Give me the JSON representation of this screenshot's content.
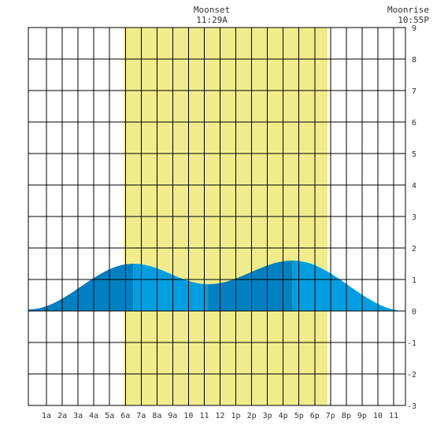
{
  "chart_data": {
    "type": "area",
    "x_unit": "hour of day",
    "x_range": [
      -0.15,
      23.75
    ],
    "y_range": [
      -3,
      9
    ],
    "y_ticks": [
      -3,
      -2,
      -1,
      0,
      1,
      2,
      3,
      4,
      5,
      6,
      7,
      8,
      9
    ],
    "x_tick_labels": [
      {
        "hour": 1,
        "label": "1a"
      },
      {
        "hour": 2,
        "label": "2a"
      },
      {
        "hour": 3,
        "label": "3a"
      },
      {
        "hour": 4,
        "label": "4a"
      },
      {
        "hour": 5,
        "label": "5a"
      },
      {
        "hour": 6,
        "label": "6a"
      },
      {
        "hour": 7,
        "label": "7a"
      },
      {
        "hour": 8,
        "label": "8a"
      },
      {
        "hour": 9,
        "label": "9a"
      },
      {
        "hour": 10,
        "label": "10"
      },
      {
        "hour": 11,
        "label": "11"
      },
      {
        "hour": 12,
        "label": "12"
      },
      {
        "hour": 13,
        "label": "1p"
      },
      {
        "hour": 14,
        "label": "2p"
      },
      {
        "hour": 15,
        "label": "3p"
      },
      {
        "hour": 16,
        "label": "4p"
      },
      {
        "hour": 17,
        "label": "5p"
      },
      {
        "hour": 18,
        "label": "6p"
      },
      {
        "hour": 19,
        "label": "7p"
      },
      {
        "hour": 20,
        "label": "8p"
      },
      {
        "hour": 21,
        "label": "9p"
      },
      {
        "hour": 22,
        "label": "10"
      },
      {
        "hour": 23,
        "label": "11"
      }
    ],
    "grid": true,
    "daylight": {
      "start": 5.9,
      "end": 18.8,
      "color": "#f0ec8c"
    },
    "tide_points": [
      {
        "x": -0.15,
        "y": 0.05
      },
      {
        "x": 6.5,
        "y": 1.5
      },
      {
        "x": 11.25,
        "y": 0.85
      },
      {
        "x": 16.6,
        "y": 1.6
      },
      {
        "x": 23.75,
        "y": 0.0
      }
    ],
    "tide_colors": {
      "light": "#009ee0",
      "dark": "#0080c0"
    },
    "moon_events": [
      {
        "name": "Moonset",
        "time": "11:29A",
        "hour": 11.48
      },
      {
        "name": "Moonrise",
        "time": "10:55P",
        "hour": 22.92
      }
    ]
  }
}
